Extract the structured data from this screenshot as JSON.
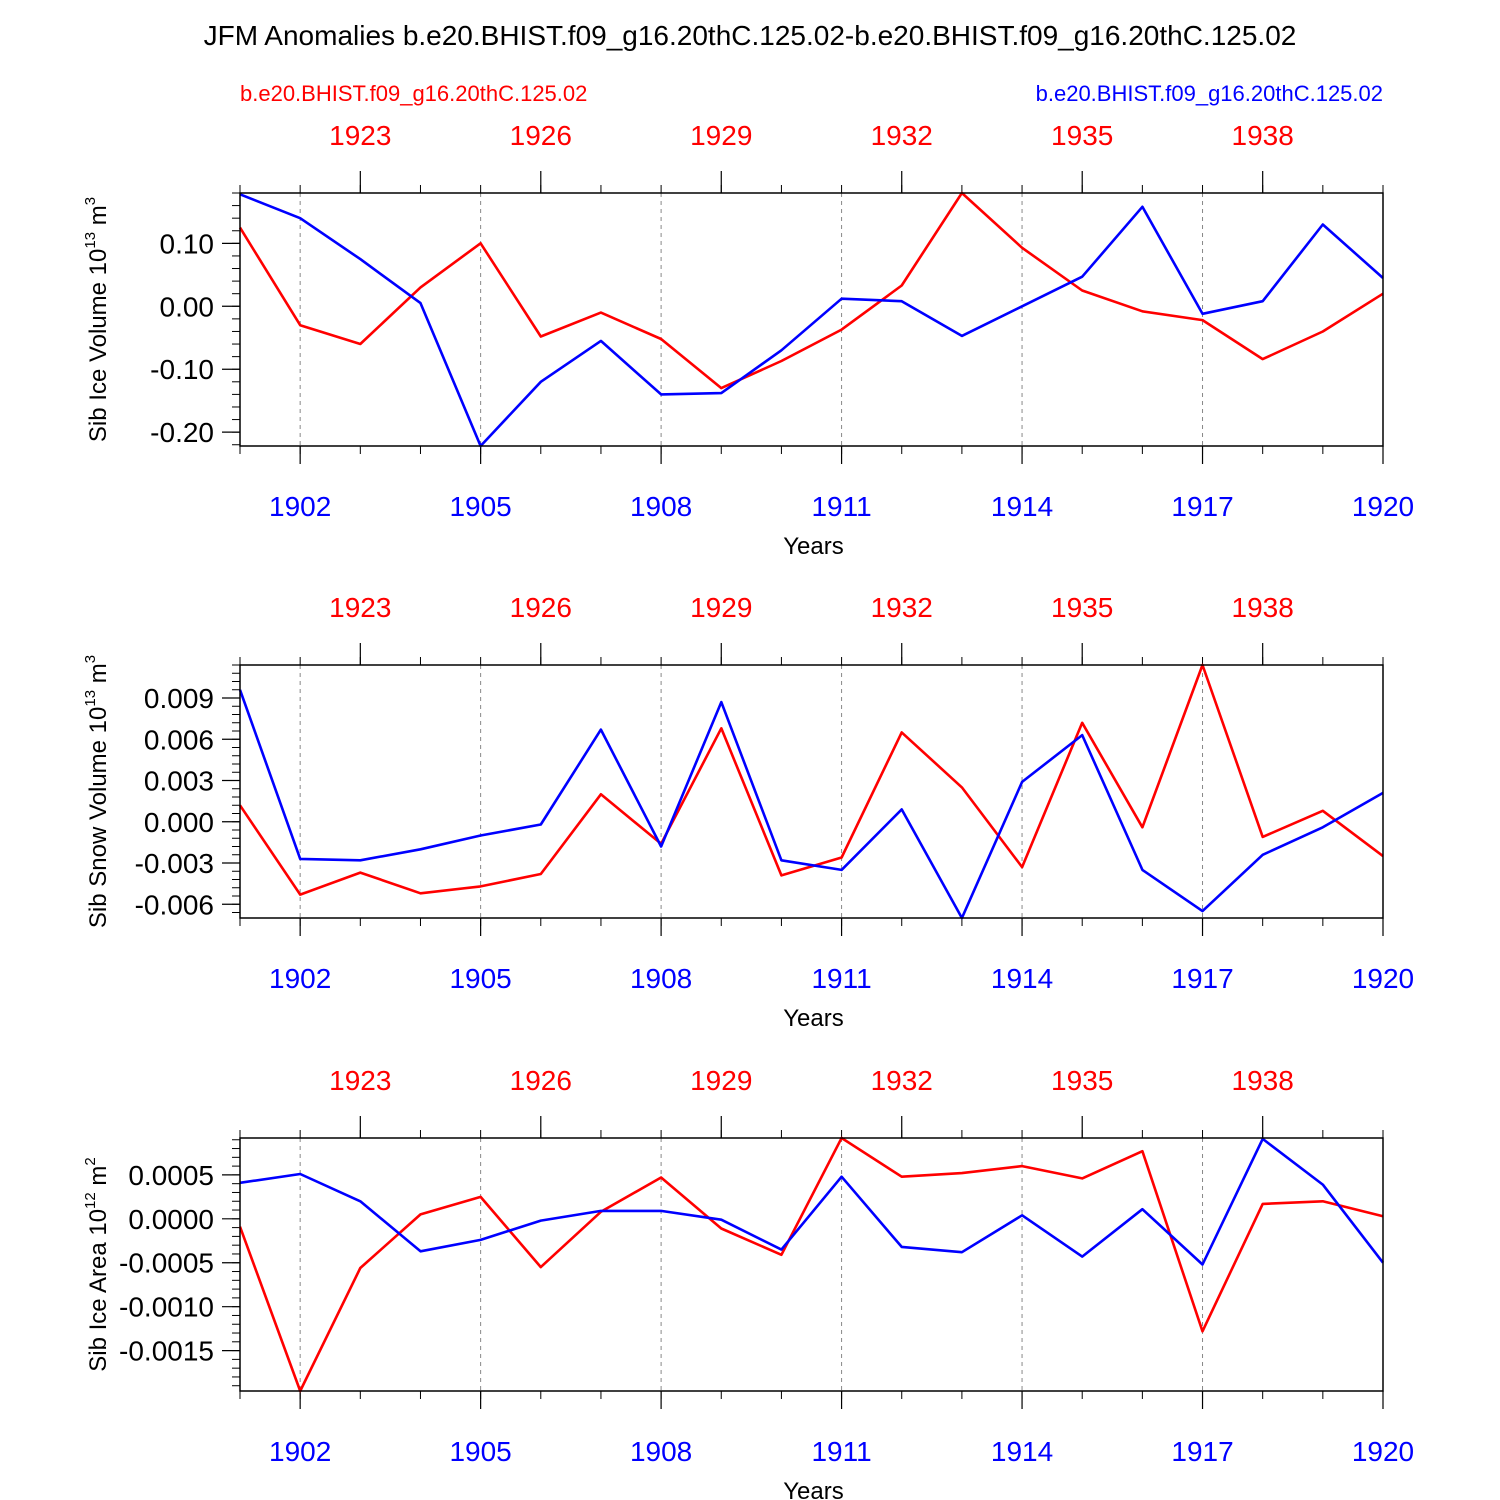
{
  "figure": {
    "title": "JFM Anomalies b.e20.BHIST.f09_g16.20thC.125.02-b.e20.BHIST.f09_g16.20thC.125.02",
    "legend_left": "b.e20.BHIST.f09_g16.20thC.125.02",
    "legend_right": "b.e20.BHIST.f09_g16.20thC.125.02",
    "colors": {
      "series_a": "#ff0000",
      "series_b": "#0000ff",
      "axis": "#000000",
      "grid": "#888888"
    }
  },
  "chart_data": [
    {
      "type": "line",
      "title": "",
      "ylabel": "Sib Ice Volume",
      "yunit_base": "10",
      "yunit_exp": "13",
      "yunit_tail": "m",
      "yunit_tail_exp": "3",
      "xlabel": "Years",
      "xlim": [
        1901,
        1920
      ],
      "ylim": [
        -0.222,
        0.18
      ],
      "ytick_values": [
        -0.2,
        -0.1,
        0.0,
        0.1
      ],
      "ytick_labels": [
        "-0.20",
        "-0.10",
        "0.00",
        "0.10"
      ],
      "ytick_minor_step": 0.02,
      "bottom_ticks": [
        1902,
        1905,
        1908,
        1911,
        1914,
        1917,
        1920
      ],
      "bottom_tick_labels": [
        "1902",
        "1905",
        "1908",
        "1911",
        "1914",
        "1917",
        "1920"
      ],
      "top_tick_positions": [
        1903,
        1906,
        1909,
        1912,
        1915,
        1918
      ],
      "top_tick_labels": [
        "1923",
        "1926",
        "1929",
        "1932",
        "1935",
        "1938"
      ],
      "x": [
        1901,
        1902,
        1903,
        1904,
        1905,
        1906,
        1907,
        1908,
        1909,
        1910,
        1911,
        1912,
        1913,
        1914,
        1915,
        1916,
        1917,
        1918,
        1919,
        1920
      ],
      "series": [
        {
          "name": "b.e20.BHIST.f09_g16.20thC.125.02 (1921-1940)",
          "color": "#ff0000",
          "values": [
            0.125,
            -0.03,
            -0.06,
            0.03,
            0.1,
            -0.048,
            -0.01,
            -0.052,
            -0.13,
            -0.087,
            -0.037,
            0.033,
            0.18,
            0.093,
            0.025,
            -0.008,
            -0.022,
            -0.084,
            -0.04,
            0.02
          ]
        },
        {
          "name": "b.e20.BHIST.f09_g16.20thC.125.02 (1901-1920)",
          "color": "#0000ff",
          "values": [
            0.178,
            0.14,
            0.075,
            0.005,
            -0.222,
            -0.12,
            -0.055,
            -0.14,
            -0.138,
            -0.07,
            0.012,
            0.008,
            -0.047,
            0.0,
            0.047,
            0.158,
            -0.012,
            0.008,
            0.13,
            0.045
          ]
        }
      ]
    },
    {
      "type": "line",
      "title": "",
      "ylabel": "Sib Snow Volume",
      "yunit_base": "10",
      "yunit_exp": "13",
      "yunit_tail": "m",
      "yunit_tail_exp": "3",
      "xlabel": "Years",
      "xlim": [
        1901,
        1920
      ],
      "ylim": [
        -0.007,
        0.0114
      ],
      "ytick_values": [
        -0.006,
        -0.003,
        0.0,
        0.003,
        0.006,
        0.009
      ],
      "ytick_labels": [
        "-0.006",
        "-0.003",
        "0.000",
        "0.003",
        "0.006",
        "0.009"
      ],
      "ytick_minor_step": 0.0006,
      "bottom_ticks": [
        1902,
        1905,
        1908,
        1911,
        1914,
        1917,
        1920
      ],
      "bottom_tick_labels": [
        "1902",
        "1905",
        "1908",
        "1911",
        "1914",
        "1917",
        "1920"
      ],
      "top_tick_positions": [
        1903,
        1906,
        1909,
        1912,
        1915,
        1918
      ],
      "top_tick_labels": [
        "1923",
        "1926",
        "1929",
        "1932",
        "1935",
        "1938"
      ],
      "x": [
        1901,
        1902,
        1903,
        1904,
        1905,
        1906,
        1907,
        1908,
        1909,
        1910,
        1911,
        1912,
        1913,
        1914,
        1915,
        1916,
        1917,
        1918,
        1919,
        1920
      ],
      "series": [
        {
          "name": "b.e20.BHIST.f09_g16.20thC.125.02 (1921-1940)",
          "color": "#ff0000",
          "values": [
            0.0012,
            -0.0053,
            -0.0037,
            -0.0052,
            -0.0047,
            -0.0038,
            0.002,
            -0.0016,
            0.0068,
            -0.0039,
            -0.0026,
            0.0065,
            0.0025,
            -0.0033,
            0.0072,
            -0.0004,
            0.0114,
            -0.0011,
            0.0008,
            -0.0025
          ]
        },
        {
          "name": "b.e20.BHIST.f09_g16.20thC.125.02 (1901-1920)",
          "color": "#0000ff",
          "values": [
            0.0096,
            -0.0027,
            -0.0028,
            -0.002,
            -0.001,
            -0.0002,
            0.0067,
            -0.0018,
            0.0087,
            -0.0028,
            -0.0035,
            0.0009,
            -0.007,
            0.0029,
            0.0063,
            -0.0035,
            -0.0065,
            -0.0024,
            -0.0004,
            0.0021
          ]
        }
      ]
    },
    {
      "type": "line",
      "title": "",
      "ylabel": "Sib Ice Area",
      "yunit_base": "10",
      "yunit_exp": "12",
      "yunit_tail": "m",
      "yunit_tail_exp": "2",
      "xlabel": "Years",
      "xlim": [
        1901,
        1920
      ],
      "ylim": [
        -0.00196,
        0.00092
      ],
      "ytick_values": [
        -0.0015,
        -0.001,
        -0.0005,
        0.0,
        0.0005
      ],
      "ytick_labels": [
        "-0.0015",
        "-0.0010",
        "-0.0005",
        "0.0000",
        "0.0005"
      ],
      "ytick_minor_step": 0.0001,
      "bottom_ticks": [
        1902,
        1905,
        1908,
        1911,
        1914,
        1917,
        1920
      ],
      "bottom_tick_labels": [
        "1902",
        "1905",
        "1908",
        "1911",
        "1914",
        "1917",
        "1920"
      ],
      "top_tick_positions": [
        1903,
        1906,
        1909,
        1912,
        1915,
        1918
      ],
      "top_tick_labels": [
        "1923",
        "1926",
        "1929",
        "1932",
        "1935",
        "1938"
      ],
      "x": [
        1901,
        1902,
        1903,
        1904,
        1905,
        1906,
        1907,
        1908,
        1909,
        1910,
        1911,
        1912,
        1913,
        1914,
        1915,
        1916,
        1917,
        1918,
        1919,
        1920
      ],
      "series": [
        {
          "name": "b.e20.BHIST.f09_g16.20thC.125.02 (1921-1940)",
          "color": "#ff0000",
          "values": [
            -9e-05,
            -0.00196,
            -0.00056,
            5e-05,
            0.00025,
            -0.00055,
            8e-05,
            0.00047,
            -0.00011,
            -0.00041,
            0.00092,
            0.00048,
            0.00052,
            0.0006,
            0.00046,
            0.00077,
            -0.00128,
            0.00017,
            0.0002,
            3e-05
          ]
        },
        {
          "name": "b.e20.BHIST.f09_g16.20thC.125.02 (1901-1920)",
          "color": "#0000ff",
          "values": [
            0.00041,
            0.00051,
            0.0002,
            -0.00037,
            -0.00024,
            -2e-05,
            9e-05,
            9e-05,
            -1e-05,
            -0.00035,
            0.00048,
            -0.00032,
            -0.00038,
            4e-05,
            -0.00043,
            0.00011,
            -0.00052,
            0.00091,
            0.00039,
            -0.0005
          ]
        }
      ]
    }
  ]
}
